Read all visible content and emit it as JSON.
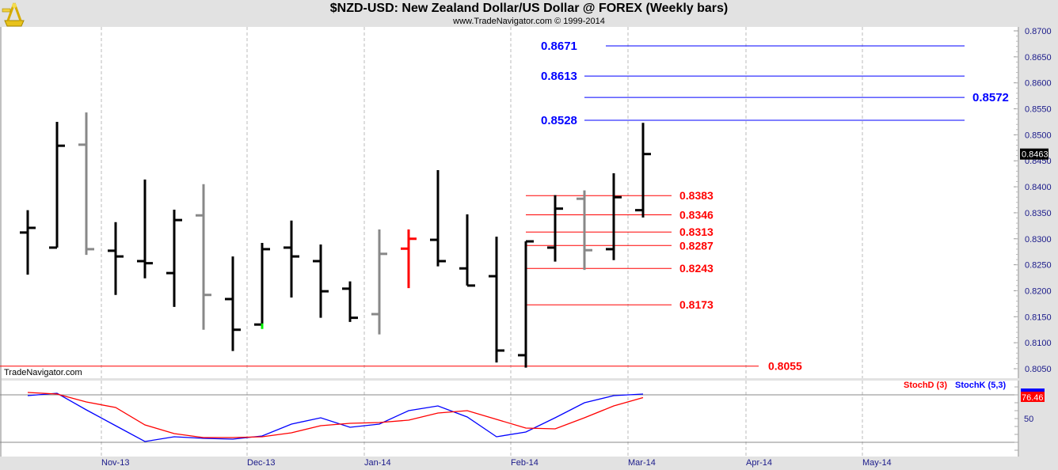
{
  "header": {
    "title": "$NZD-USD:  New Zealand Dollar/US Dollar @ FOREX  (Weekly bars)",
    "subtitle": "www.TradeNavigator.com © 1999-2014",
    "logo": "sextant-logo"
  },
  "watermark": "TradeNavigator.com",
  "colors": {
    "up": "#000000",
    "gray": "#888888",
    "red": "#ff0000",
    "blue": "#0000ff",
    "green": "#00ee00",
    "background": "#ffffff",
    "frame": "#e2e2e2"
  },
  "chart_data": [
    {
      "type": "ohlc",
      "title": "$NZD-USD:  New Zealand Dollar/US Dollar @ FOREX  (Weekly bars)",
      "ylim": [
        0.805,
        0.87
      ],
      "yticks": [
        "0.8700",
        "0.8650",
        "0.8600",
        "0.8550",
        "0.8500",
        "0.8450",
        "0.8400",
        "0.8350",
        "0.8300",
        "0.8250",
        "0.8200",
        "0.8150",
        "0.8100",
        "0.8050"
      ],
      "xticks": [
        "Nov-13",
        "Dec-13",
        "Jan-14",
        "Feb-14",
        "Mar-14",
        "Apr-14",
        "May-14"
      ],
      "grid": "vertical dashed at month starts",
      "last_price_label": "0.8463",
      "bars": [
        {
          "o": 0.8312,
          "h": 0.8355,
          "l": 0.8231,
          "c": 0.8321,
          "color": "black"
        },
        {
          "o": 0.8283,
          "h": 0.8525,
          "l": 0.8283,
          "c": 0.8479,
          "color": "black"
        },
        {
          "o": 0.8481,
          "h": 0.8543,
          "l": 0.8269,
          "c": 0.828,
          "color": "gray"
        },
        {
          "o": 0.8277,
          "h": 0.8332,
          "l": 0.8192,
          "c": 0.8266,
          "color": "black"
        },
        {
          "o": 0.8257,
          "h": 0.8414,
          "l": 0.8224,
          "c": 0.8253,
          "color": "black"
        },
        {
          "o": 0.8234,
          "h": 0.8356,
          "l": 0.8169,
          "c": 0.8336,
          "color": "black"
        },
        {
          "o": 0.8345,
          "h": 0.8405,
          "l": 0.8125,
          "c": 0.8192,
          "color": "gray"
        },
        {
          "o": 0.8184,
          "h": 0.8266,
          "l": 0.8084,
          "c": 0.8125,
          "color": "black"
        },
        {
          "o": 0.8135,
          "h": 0.8292,
          "l": 0.8128,
          "c": 0.828,
          "color": "black",
          "marker": "green"
        },
        {
          "o": 0.8283,
          "h": 0.8335,
          "l": 0.8187,
          "c": 0.8266,
          "color": "black"
        },
        {
          "o": 0.8257,
          "h": 0.8289,
          "l": 0.8148,
          "c": 0.8199,
          "color": "black"
        },
        {
          "o": 0.8204,
          "h": 0.8218,
          "l": 0.814,
          "c": 0.8148,
          "color": "black"
        },
        {
          "o": 0.8155,
          "h": 0.8318,
          "l": 0.8116,
          "c": 0.8271,
          "color": "gray"
        },
        {
          "o": 0.8281,
          "h": 0.8318,
          "l": 0.8205,
          "c": 0.83,
          "color": "red"
        },
        {
          "o": 0.8298,
          "h": 0.8432,
          "l": 0.8247,
          "c": 0.8257,
          "color": "black"
        },
        {
          "o": 0.8243,
          "h": 0.8347,
          "l": 0.821,
          "c": 0.821,
          "color": "black"
        },
        {
          "o": 0.8228,
          "h": 0.8304,
          "l": 0.8062,
          "c": 0.8085,
          "color": "black"
        },
        {
          "o": 0.8076,
          "h": 0.8295,
          "l": 0.8052,
          "c": 0.8295,
          "color": "black"
        },
        {
          "o": 0.8283,
          "h": 0.8384,
          "l": 0.8256,
          "c": 0.8358,
          "color": "black"
        },
        {
          "o": 0.8377,
          "h": 0.8393,
          "l": 0.824,
          "c": 0.8278,
          "color": "gray"
        },
        {
          "o": 0.828,
          "h": 0.8426,
          "l": 0.8259,
          "c": 0.838,
          "color": "black"
        },
        {
          "o": 0.8355,
          "h": 0.8523,
          "l": 0.8341,
          "c": 0.8463,
          "color": "black"
        }
      ],
      "levels": [
        {
          "value": 0.8671,
          "label": "0.8671",
          "color": "blue"
        },
        {
          "value": 0.8613,
          "label": "0.8613",
          "color": "blue"
        },
        {
          "value": 0.8572,
          "label": "0.8572",
          "color": "blue"
        },
        {
          "value": 0.8528,
          "label": "0.8528",
          "color": "blue"
        },
        {
          "value": 0.8383,
          "label": "0.8383",
          "color": "red"
        },
        {
          "value": 0.8346,
          "label": "0.8346",
          "color": "red"
        },
        {
          "value": 0.8313,
          "label": "0.8313",
          "color": "red"
        },
        {
          "value": 0.8287,
          "label": "0.8287",
          "color": "red"
        },
        {
          "value": 0.8243,
          "label": "0.8243",
          "color": "red"
        },
        {
          "value": 0.8173,
          "label": "0.8173",
          "color": "red"
        },
        {
          "value": 0.8055,
          "label": "0.8055",
          "color": "red"
        }
      ]
    },
    {
      "type": "line",
      "ylim": [
        0,
        100
      ],
      "yticks": [
        "50"
      ],
      "reference_lines": [
        80,
        20
      ],
      "legend": "top-right",
      "last_value_label": "76.46",
      "series": [
        {
          "name": "StochD (3)",
          "color": "red",
          "values": [
            83,
            81,
            71,
            64,
            42,
            31,
            26,
            26,
            27,
            32,
            41,
            44,
            45,
            48,
            57,
            60,
            49,
            38,
            37,
            51,
            66,
            76.46
          ]
        },
        {
          "name": "StochK (5,3)",
          "color": "blue",
          "values": [
            79,
            82,
            61,
            41,
            21,
            27,
            25,
            24,
            28,
            43,
            51,
            39,
            43,
            60,
            66,
            52,
            27,
            33,
            51,
            70,
            79,
            81
          ]
        }
      ]
    }
  ]
}
